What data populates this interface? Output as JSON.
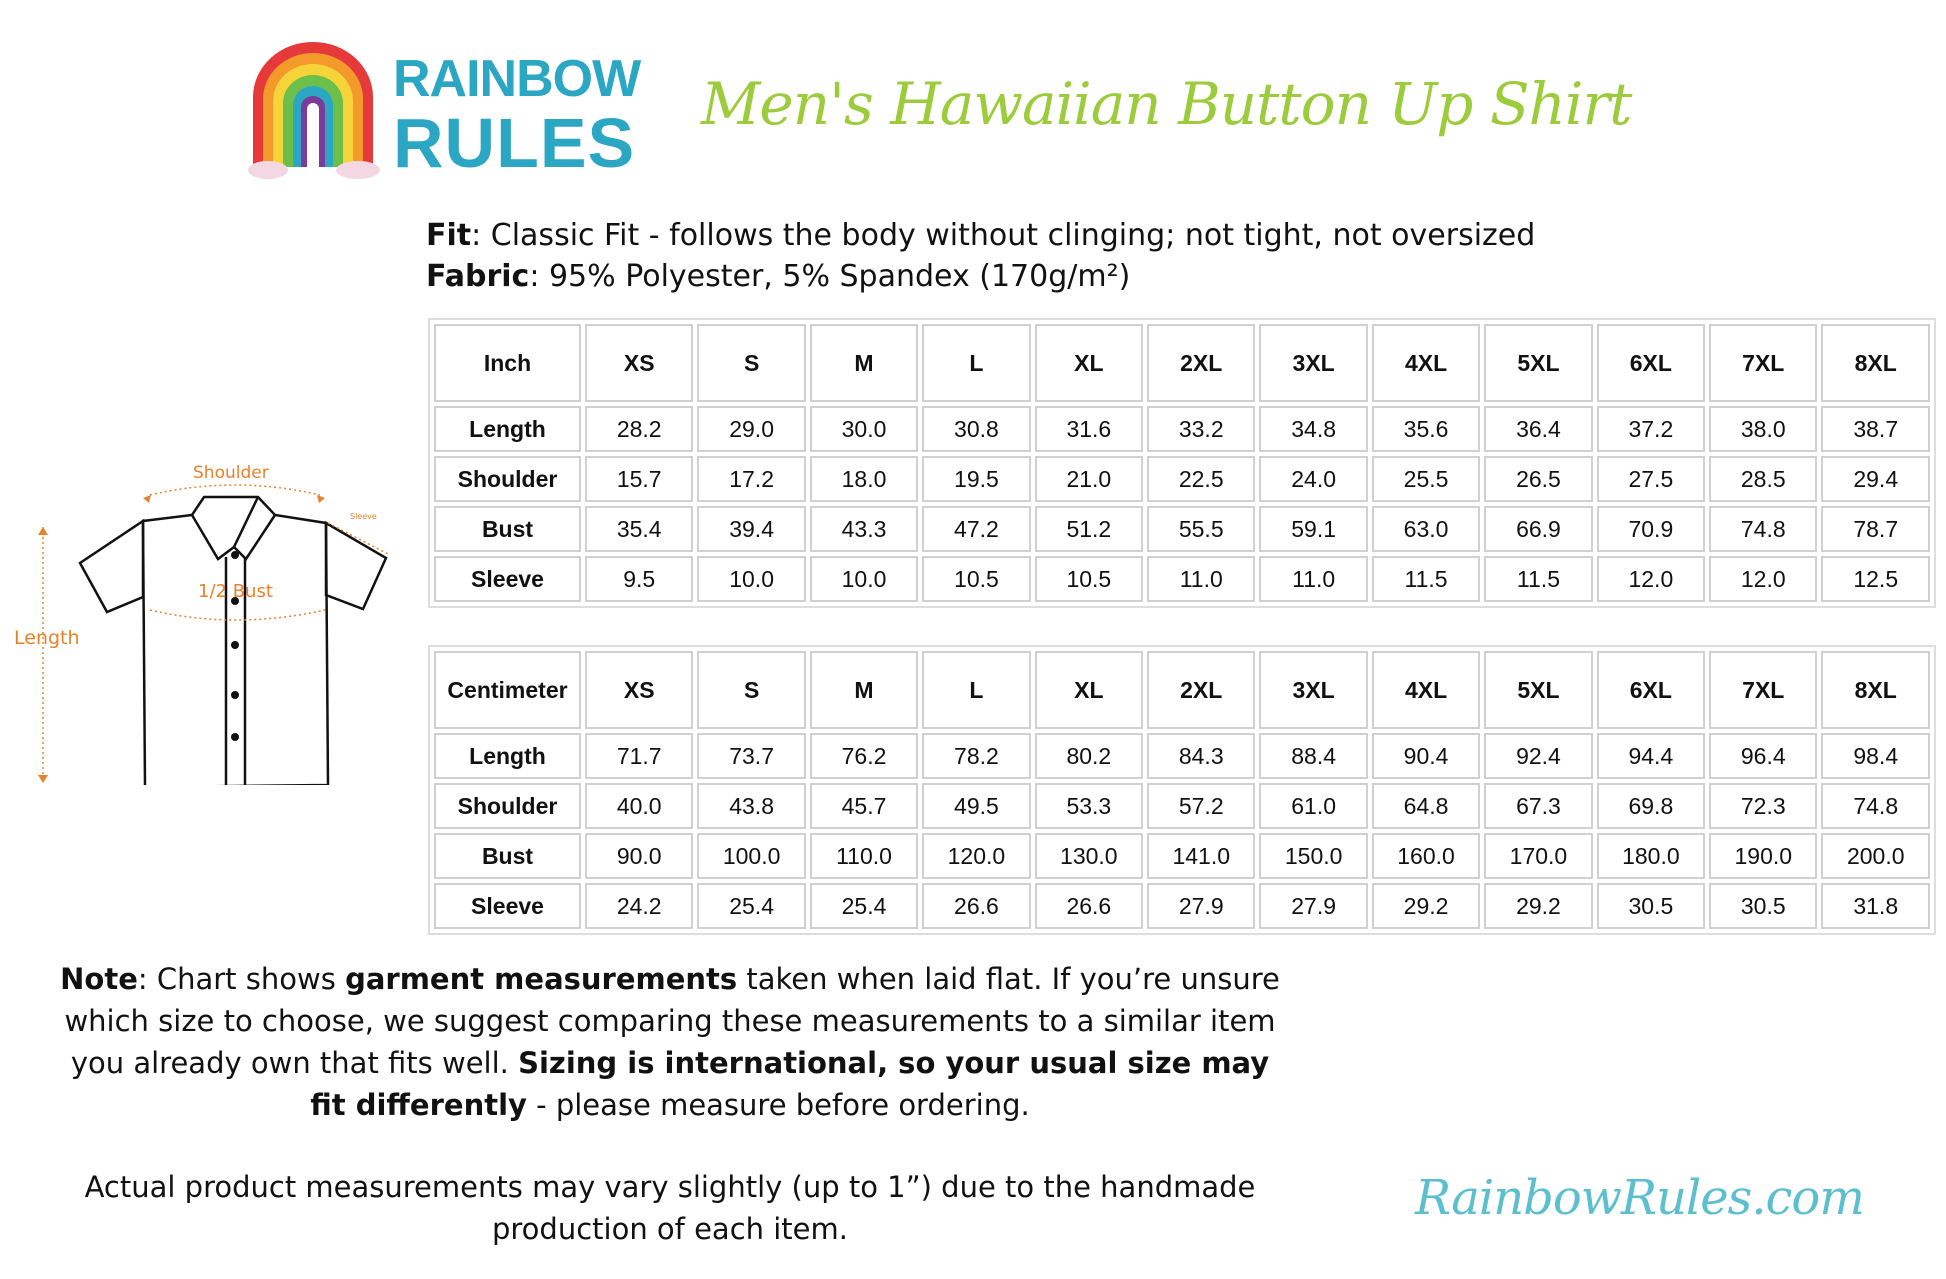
{
  "brand": {
    "logo_line1": "RAINBOW",
    "logo_line2": "RULES",
    "website": "RainbowRules.com"
  },
  "title": "Men's Hawaiian Button Up Shirt",
  "specs": {
    "fit_label": "Fit",
    "fit_value": ": Classic Fit - follows the body without clinging; not tight, not oversized",
    "fabric_label": "Fabric",
    "fabric_value": ": 95% Polyester, 5% Spandex (170g/m²)"
  },
  "diagram": {
    "shoulder": "Shoulder",
    "sleeve": "Sleeve",
    "bust": "1/2 Bust",
    "length": "Length",
    "accent": "#e8822a"
  },
  "sizes": [
    "XS",
    "S",
    "M",
    "L",
    "XL",
    "2XL",
    "3XL",
    "4XL",
    "5XL",
    "6XL",
    "7XL",
    "8XL"
  ],
  "inch_table": {
    "unit": "Inch",
    "rows": [
      {
        "label": "Length",
        "values": [
          "28.2",
          "29.0",
          "30.0",
          "30.8",
          "31.6",
          "33.2",
          "34.8",
          "35.6",
          "36.4",
          "37.2",
          "38.0",
          "38.7"
        ]
      },
      {
        "label": "Shoulder",
        "values": [
          "15.7",
          "17.2",
          "18.0",
          "19.5",
          "21.0",
          "22.5",
          "24.0",
          "25.5",
          "26.5",
          "27.5",
          "28.5",
          "29.4"
        ]
      },
      {
        "label": "Bust",
        "values": [
          "35.4",
          "39.4",
          "43.3",
          "47.2",
          "51.2",
          "55.5",
          "59.1",
          "63.0",
          "66.9",
          "70.9",
          "74.8",
          "78.7"
        ]
      },
      {
        "label": "Sleeve",
        "values": [
          "9.5",
          "10.0",
          "10.0",
          "10.5",
          "10.5",
          "11.0",
          "11.0",
          "11.5",
          "11.5",
          "12.0",
          "12.0",
          "12.5"
        ]
      }
    ]
  },
  "cm_table": {
    "unit": "Centimeter",
    "rows": [
      {
        "label": "Length",
        "values": [
          "71.7",
          "73.7",
          "76.2",
          "78.2",
          "80.2",
          "84.3",
          "88.4",
          "90.4",
          "92.4",
          "94.4",
          "96.4",
          "98.4"
        ]
      },
      {
        "label": "Shoulder",
        "values": [
          "40.0",
          "43.8",
          "45.7",
          "49.5",
          "53.3",
          "57.2",
          "61.0",
          "64.8",
          "67.3",
          "69.8",
          "72.3",
          "74.8"
        ]
      },
      {
        "label": "Bust",
        "values": [
          "90.0",
          "100.0",
          "110.0",
          "120.0",
          "130.0",
          "141.0",
          "150.0",
          "160.0",
          "170.0",
          "180.0",
          "190.0",
          "200.0"
        ]
      },
      {
        "label": "Sleeve",
        "values": [
          "24.2",
          "25.4",
          "25.4",
          "26.6",
          "26.6",
          "27.9",
          "27.9",
          "29.2",
          "29.2",
          "30.5",
          "30.5",
          "31.8"
        ]
      }
    ]
  },
  "note": {
    "label": "Note",
    "t1": ": Chart shows ",
    "b1": "garment measurements",
    "t2": " taken when laid flat. If you’re unsure which size to choose, we suggest comparing these measurements to a similar item you already own that fits well. ",
    "b2": "Sizing is international, so your usual size may fit differently",
    "t3": " - please measure before ordering."
  },
  "disclaimer": "Actual product measurements may vary slightly (up to 1”) due to the handmade production of each item.",
  "colors": {
    "title_green": "#9ccb3b",
    "brand_teal": "#2ba7c4",
    "site_teal": "#5bbfcf"
  }
}
